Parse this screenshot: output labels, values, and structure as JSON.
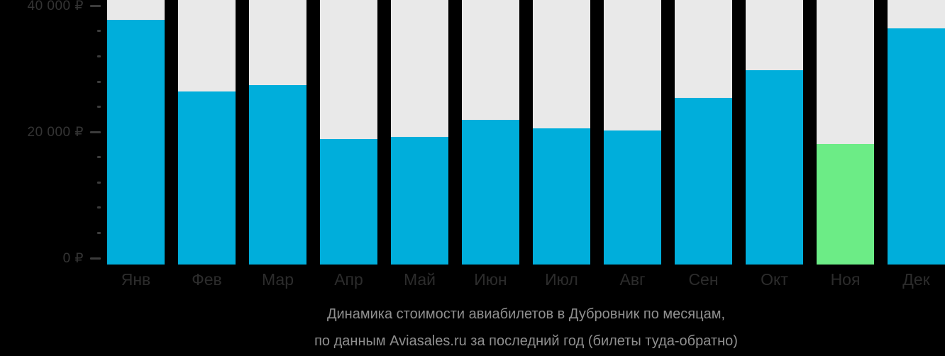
{
  "chart_data": {
    "type": "bar",
    "title_lines": [
      "Динамика стоимости авиабилетов в Дубровник по месяцам,",
      "по данным Aviasales.ru за последний год (билеты туда-обратно)"
    ],
    "categories": [
      "Янв",
      "Фев",
      "Мар",
      "Апр",
      "Май",
      "Июн",
      "Июл",
      "Авг",
      "Сен",
      "Окт",
      "Ноя",
      "Дек"
    ],
    "values": [
      37800,
      26400,
      27400,
      18900,
      19200,
      21900,
      20600,
      20200,
      25400,
      29800,
      18100,
      36400
    ],
    "units": "₽",
    "highlight_index": 10,
    "highlight_month": "Ноя",
    "y_ticks": [
      {
        "value": 0,
        "label": "0 ₽"
      },
      {
        "value": 20000,
        "label": "20 000 ₽"
      },
      {
        "value": 40000,
        "label": "40 000 ₽"
      }
    ],
    "axis": {
      "ymin": 0,
      "ymax": 40000,
      "minor_step": 4000,
      "major_step": 20000
    },
    "legend": null,
    "grid": "off",
    "colors": {
      "bar": "#00AEDB",
      "highlight": "#6CEC86",
      "column_bg": "#E9E9E9",
      "background": "#000000",
      "axis_text": "#343434",
      "month_text": "#2C2C2C",
      "tick": "#3C3C3C",
      "title_text": "#8F8F8F"
    }
  }
}
